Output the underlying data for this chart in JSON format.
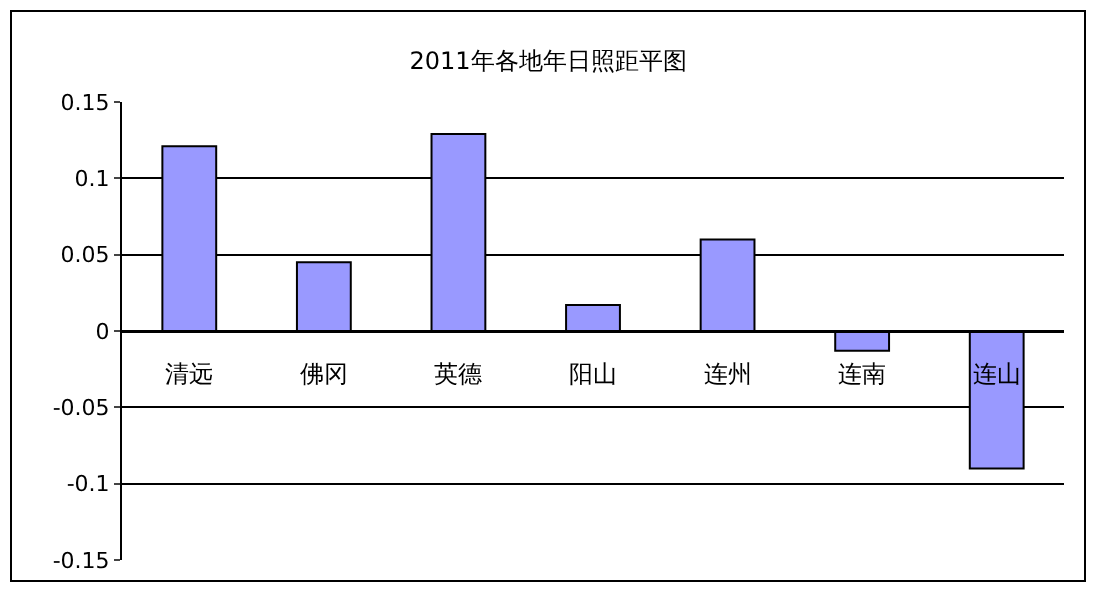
{
  "chart_data": {
    "type": "bar",
    "title": "2011年各地年日照距平图",
    "categories": [
      "清远",
      "佛冈",
      "英德",
      "阳山",
      "连州",
      "连南",
      "连山"
    ],
    "values": [
      0.121,
      0.045,
      0.129,
      0.017,
      0.06,
      -0.013,
      -0.09
    ],
    "color": "#9999ff",
    "ylim": [
      -0.15,
      0.15
    ],
    "yticks": [
      -0.15,
      -0.1,
      -0.05,
      0,
      0.05,
      0.1,
      0.15
    ],
    "grid": "y"
  }
}
